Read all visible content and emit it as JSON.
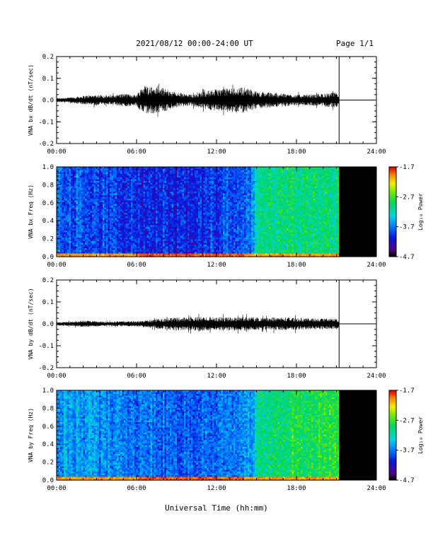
{
  "header": {
    "title": "2021/08/12  00:00-24:00 UT",
    "page": "Page 1/1"
  },
  "footer": {
    "xlabel": "Universal Time (hh:mm)"
  },
  "chart_data": [
    {
      "type": "line",
      "ylabel": "VNA bx dB/dt (nT/sec)",
      "x_ticks": [
        "00:00",
        "06:00",
        "12:00",
        "18:00",
        "24:00"
      ],
      "xlim_hours": [
        0,
        24
      ],
      "ylim": [
        -0.2,
        0.2
      ],
      "y_ticks": [
        -0.2,
        -0.1,
        0.0,
        0.1,
        0.2
      ],
      "y_tick_labels": [
        "-0.2",
        "-0.1",
        "0.0",
        "0.1",
        "0.2"
      ],
      "data_end_hour": 21.2,
      "envelope": {
        "hours": [
          0,
          1,
          2,
          3,
          4,
          5,
          6,
          6.5,
          7,
          8,
          9,
          10,
          11,
          12,
          13,
          14,
          15,
          16,
          17,
          18,
          19,
          20,
          21,
          21.2
        ],
        "amplitude": [
          0.01,
          0.012,
          0.02,
          0.025,
          0.02,
          0.03,
          0.025,
          0.07,
          0.065,
          0.055,
          0.035,
          0.025,
          0.04,
          0.05,
          0.055,
          0.06,
          0.04,
          0.035,
          0.03,
          0.025,
          0.025,
          0.03,
          0.035,
          0.02
        ]
      },
      "flat_value_after_end": 0.0
    },
    {
      "type": "heatmap",
      "ylabel": "VNA bx Freq (Hz)",
      "x_ticks": [
        "00:00",
        "06:00",
        "12:00",
        "18:00",
        "24:00"
      ],
      "xlim_hours": [
        0,
        24
      ],
      "ylim": [
        0.0,
        1.0
      ],
      "y_ticks": [
        0.0,
        0.2,
        0.4,
        0.6,
        0.8,
        1.0
      ],
      "y_tick_labels": [
        "0.0",
        "0.2",
        "0.4",
        "0.6",
        "0.8",
        "1.0"
      ],
      "data_end_hour": 21.2,
      "colorbar": {
        "label": "Log₁₀ Power",
        "min": -4.7,
        "max": -1.7,
        "ticks": [
          -4.7,
          -3.7,
          -2.7,
          -1.7
        ],
        "tick_labels": [
          "-4.7",
          "-3.7",
          "-2.7",
          "-1.7"
        ]
      },
      "mean_log_power": {
        "hours": [
          0,
          3,
          6,
          9,
          12,
          14.5,
          15,
          18,
          21.2
        ],
        "values": [
          -3.75,
          -3.9,
          -4.0,
          -4.05,
          -3.95,
          -3.75,
          -3.1,
          -3.0,
          -2.95
        ]
      }
    },
    {
      "type": "line",
      "ylabel": "VNA by dB/dt (nT/sec)",
      "x_ticks": [
        "00:00",
        "06:00",
        "12:00",
        "18:00",
        "24:00"
      ],
      "xlim_hours": [
        0,
        24
      ],
      "ylim": [
        -0.2,
        0.2
      ],
      "y_ticks": [
        -0.2,
        -0.1,
        0.0,
        0.1,
        0.2
      ],
      "y_tick_labels": [
        "-0.2",
        "-0.1",
        "0.0",
        "0.1",
        "0.2"
      ],
      "data_end_hour": 21.2,
      "envelope": {
        "hours": [
          0,
          1,
          2,
          3,
          4,
          5,
          6,
          7,
          8,
          9,
          10,
          11,
          12,
          13,
          14,
          15,
          16,
          17,
          18,
          19,
          20,
          21,
          21.2
        ],
        "amplitude": [
          0.008,
          0.01,
          0.015,
          0.012,
          0.01,
          0.012,
          0.012,
          0.018,
          0.025,
          0.03,
          0.03,
          0.032,
          0.03,
          0.03,
          0.032,
          0.03,
          0.028,
          0.03,
          0.028,
          0.025,
          0.025,
          0.025,
          0.015
        ]
      },
      "flat_value_after_end": 0.0
    },
    {
      "type": "heatmap",
      "ylabel": "VNA by Freq (Hz)",
      "x_ticks": [
        "00:00",
        "06:00",
        "12:00",
        "18:00",
        "24:00"
      ],
      "xlim_hours": [
        0,
        24
      ],
      "ylim": [
        0.0,
        1.0
      ],
      "y_ticks": [
        0.0,
        0.2,
        0.4,
        0.6,
        0.8,
        1.0
      ],
      "y_tick_labels": [
        "0.0",
        "0.2",
        "0.4",
        "0.6",
        "0.8",
        "1.0"
      ],
      "data_end_hour": 21.2,
      "colorbar": {
        "label": "Log₁₀ Power",
        "min": -4.7,
        "max": -1.7,
        "ticks": [
          -4.7,
          -3.7,
          -2.7,
          -1.7
        ],
        "tick_labels": [
          "-4.7",
          "-3.7",
          "-2.7",
          "-1.7"
        ]
      },
      "mean_log_power": {
        "hours": [
          0,
          3,
          6,
          9,
          12,
          14.5,
          15,
          18,
          21.2
        ],
        "values": [
          -3.5,
          -3.6,
          -3.75,
          -3.8,
          -3.75,
          -3.6,
          -3.1,
          -2.9,
          -2.8
        ]
      }
    }
  ]
}
